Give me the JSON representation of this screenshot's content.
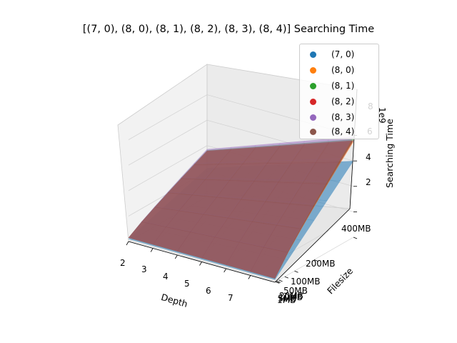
{
  "chart_data": {
    "type": "surface",
    "title": "[(7, 0), (8, 0), (8, 1), (8, 2), (8, 3), (8, 4)] Searching Time",
    "xlabel": "Depth",
    "ylabel": "Filesize",
    "zlabel": "Searching Time",
    "z_offset_label": "1e9",
    "x_ticks": [
      "2",
      "3",
      "4",
      "5",
      "6",
      "7"
    ],
    "y_ticks": [
      "1MB",
      "5MB",
      "10MB",
      "20MB",
      "50MB",
      "100MB",
      "200MB",
      "400MB"
    ],
    "z_ticks": [
      "2",
      "4",
      "6",
      "8"
    ],
    "xlim": [
      2,
      8
    ],
    "ylim": [
      0,
      400
    ],
    "zlim": [
      0,
      9
    ],
    "legend_position": "upper right",
    "series": [
      {
        "name": "(7, 0)",
        "color": "#1f77b4"
      },
      {
        "name": "(8, 0)",
        "color": "#ff7f0e"
      },
      {
        "name": "(8, 1)",
        "color": "#2ca02c"
      },
      {
        "name": "(8, 2)",
        "color": "#d62728"
      },
      {
        "name": "(8, 3)",
        "color": "#9467bd"
      },
      {
        "name": "(8, 4)",
        "color": "#8c564b"
      }
    ]
  }
}
